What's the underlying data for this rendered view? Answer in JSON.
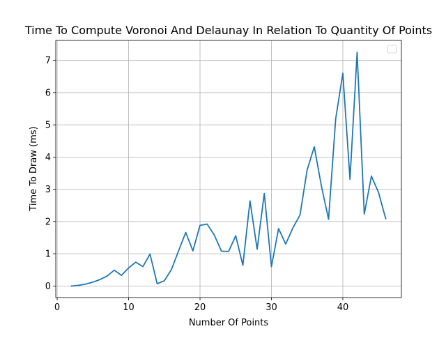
{
  "chart_data": {
    "type": "line",
    "title": "Time To Compute Voronoi And Delaunay In Relation To Quantity Of Points",
    "xlabel": "Number Of Points",
    "ylabel": "Time To Draw (ms)",
    "xlim": [
      -0.2,
      48.2
    ],
    "ylim": [
      -0.36,
      7.62
    ],
    "xticks": [
      0,
      10,
      20,
      30,
      40
    ],
    "yticks": [
      0,
      1,
      2,
      3,
      4,
      5,
      6,
      7
    ],
    "grid": true,
    "legend": "top-right",
    "series": [
      {
        "color": "#1f77b4",
        "x": [
          2,
          3,
          4,
          5,
          6,
          7,
          8,
          9,
          10,
          11,
          12,
          13,
          14,
          15,
          16,
          17,
          18,
          19,
          20,
          21,
          22,
          23,
          24,
          25,
          26,
          27,
          28,
          29,
          30,
          31,
          32,
          33,
          34,
          35,
          36,
          37,
          38,
          39,
          40,
          41,
          42,
          43,
          44,
          45,
          46
        ],
        "y": [
          0.0,
          0.02,
          0.06,
          0.12,
          0.2,
          0.31,
          0.49,
          0.33,
          0.56,
          0.74,
          0.6,
          0.99,
          0.07,
          0.16,
          0.51,
          1.09,
          1.66,
          1.09,
          1.88,
          1.92,
          1.58,
          1.08,
          1.07,
          1.56,
          0.64,
          2.64,
          1.14,
          2.87,
          0.6,
          1.78,
          1.3,
          1.8,
          2.2,
          3.6,
          4.32,
          3.1,
          2.07,
          5.19,
          6.6,
          3.31,
          7.25,
          2.23,
          3.41,
          2.9,
          2.09
        ]
      }
    ]
  }
}
